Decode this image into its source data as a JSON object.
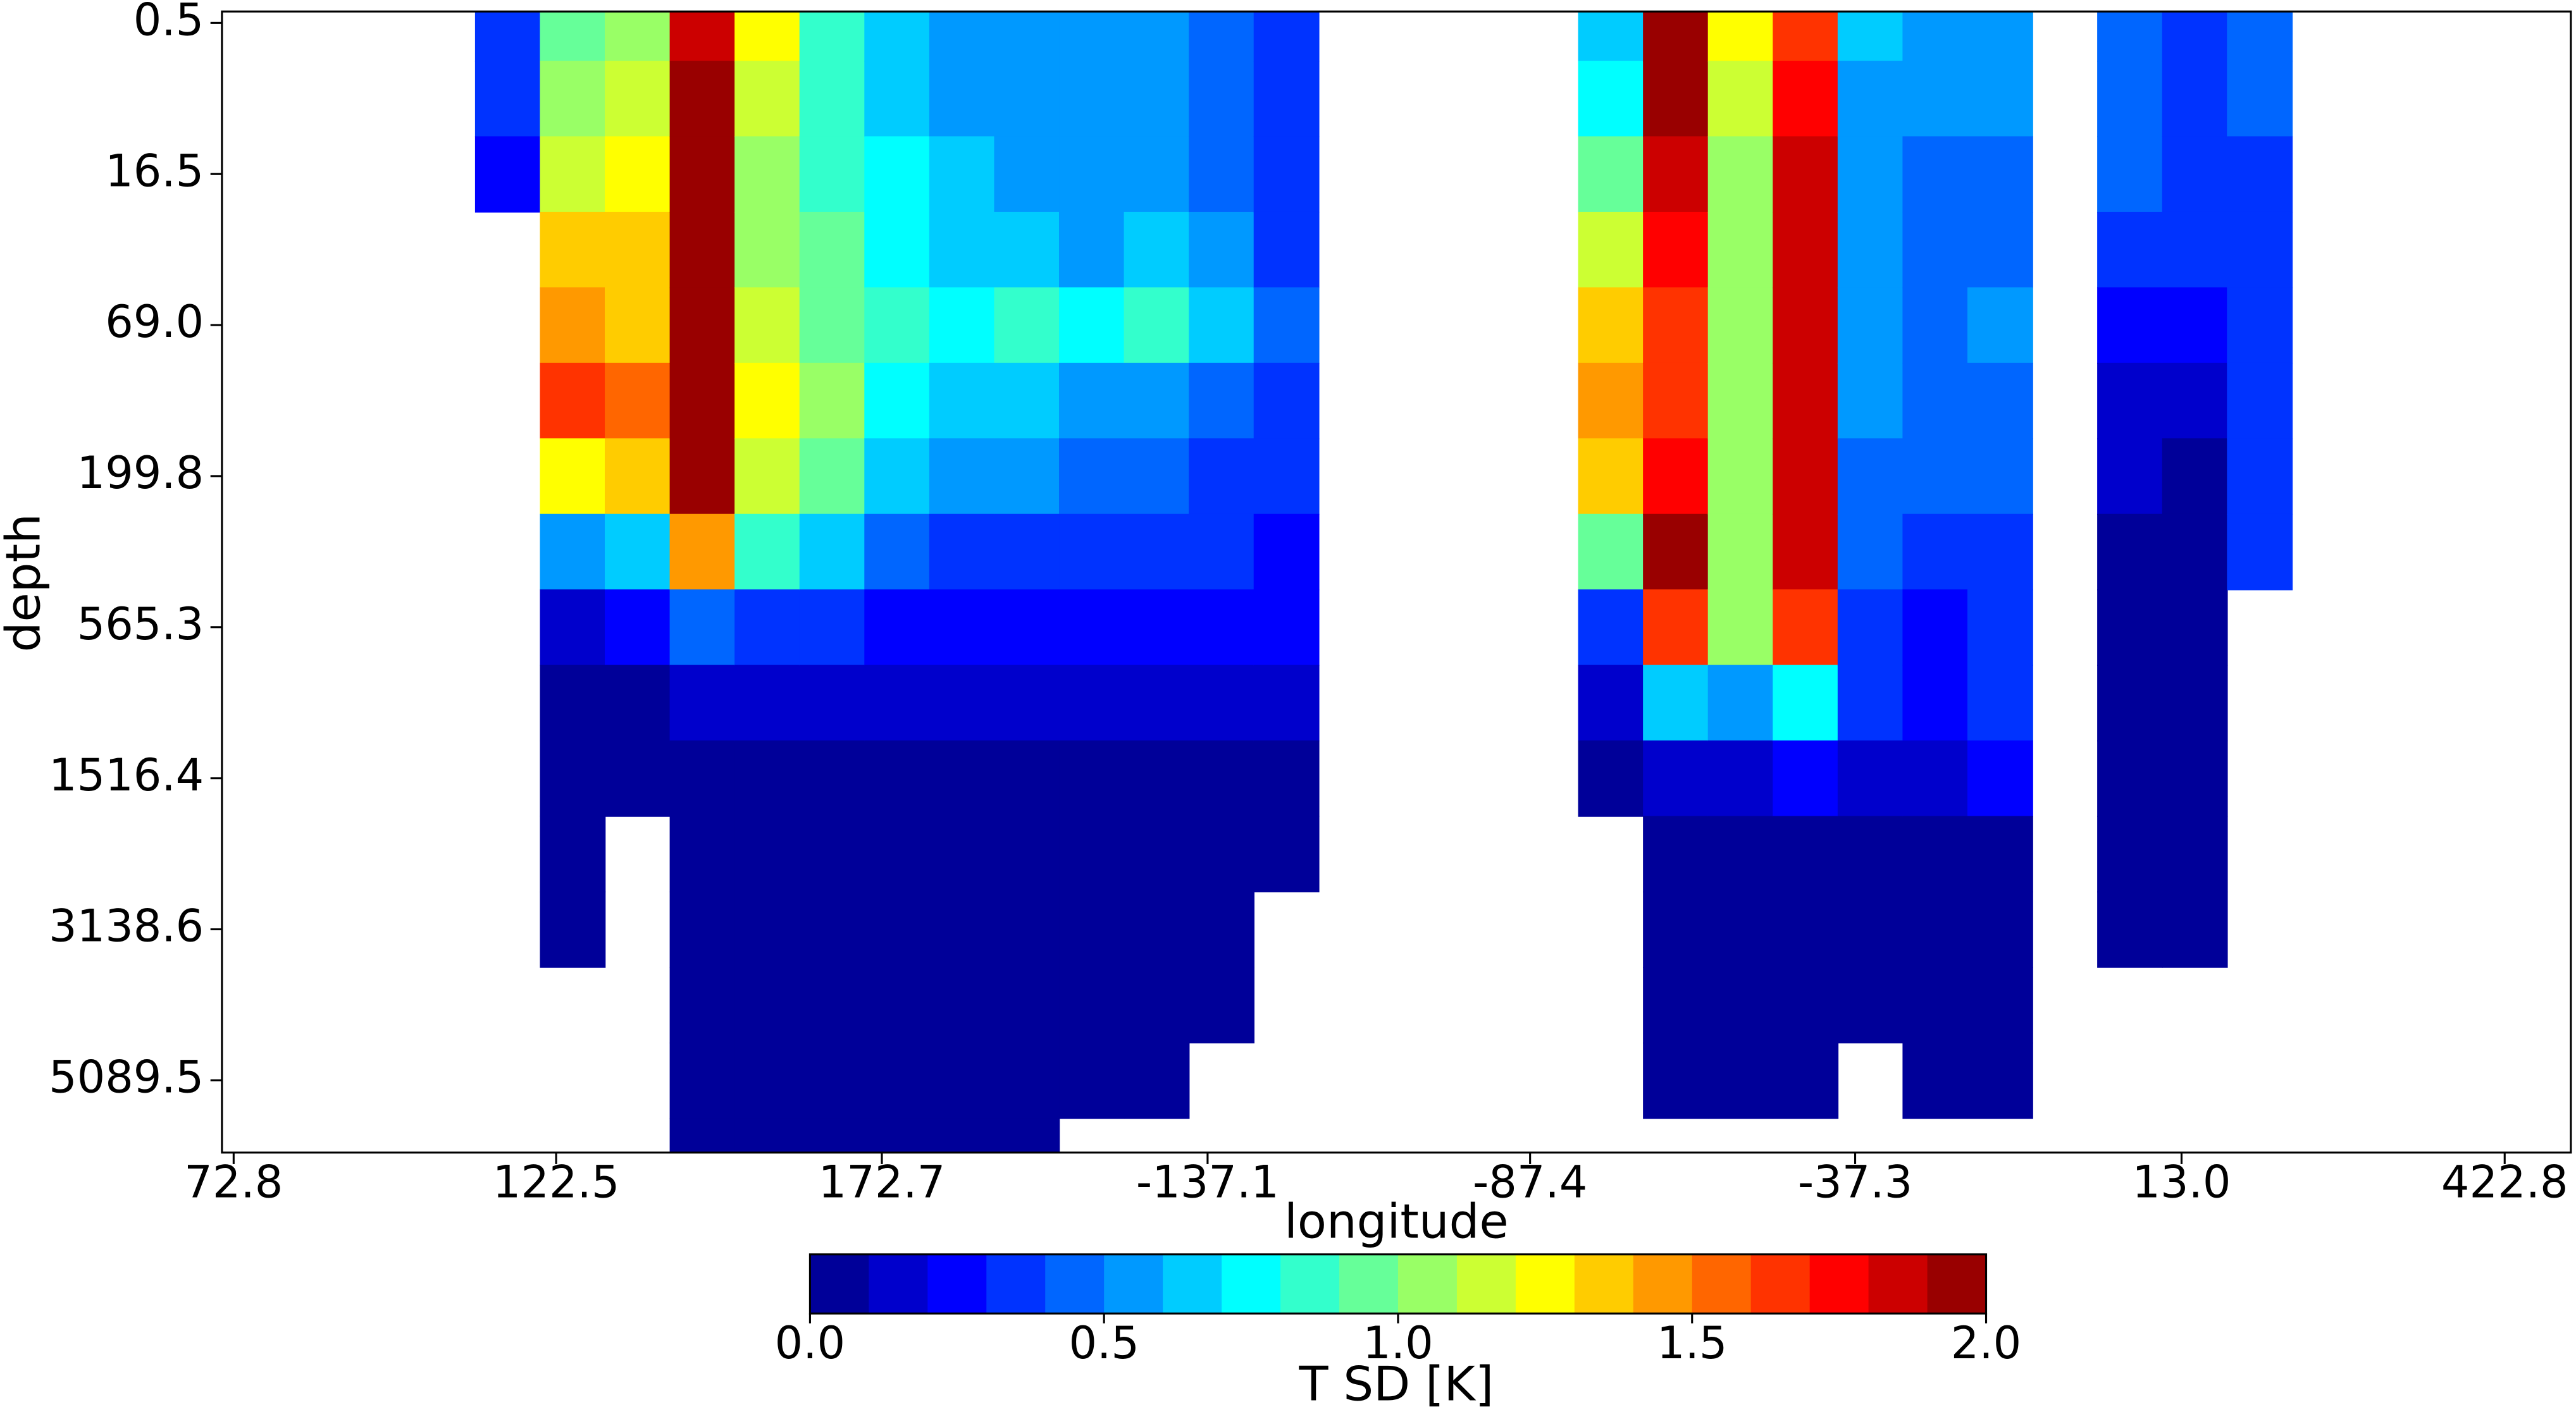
{
  "chart_data": {
    "type": "heatmap",
    "xlabel": "longitude",
    "ylabel": "depth",
    "colorbar_label": "T SD [K]",
    "colormap": "jet",
    "levels": 20,
    "clim": [
      0,
      2
    ],
    "colorbar_ticks": [
      {
        "value": 0,
        "label": "0.0"
      },
      {
        "value": 0.5,
        "label": "0.5"
      },
      {
        "value": 1,
        "label": "1.0"
      },
      {
        "value": 1.5,
        "label": "1.5"
      },
      {
        "value": 2,
        "label": "2.0"
      }
    ],
    "xlim": [
      71.0,
      433.0
    ],
    "xticks": [
      72.8,
      122.5,
      172.7,
      {
        "value": 222.9,
        "label": "-137.1"
      },
      {
        "value": 272.6,
        "label": "-87.4"
      },
      {
        "value": 322.7,
        "label": "-37.3"
      },
      {
        "value": 373.0,
        "label": "13.0"
      },
      422.8
    ],
    "y": [
      "0.5",
      null,
      "16.5",
      null,
      "69.0",
      null,
      "199.8",
      null,
      "565.3",
      null,
      "1516.4",
      null,
      "3138.6",
      null,
      "5089.5",
      null
    ],
    "x": [
      75,
      85,
      95,
      105,
      115,
      125,
      135,
      145,
      155,
      165,
      175,
      185,
      195,
      205,
      215,
      225,
      235,
      245,
      255,
      265,
      275,
      285,
      295,
      305,
      315,
      325,
      335,
      345,
      355,
      365,
      375,
      385,
      395,
      405,
      415,
      425
    ],
    "values": [
      [
        null,
        null,
        null,
        null,
        null,
        null,
        null,
        null,
        null,
        null,
        null,
        null,
        null,
        null,
        null,
        null
      ],
      [
        null,
        null,
        null,
        null,
        null,
        null,
        null,
        null,
        null,
        null,
        null,
        null,
        null,
        null,
        null,
        null
      ],
      [
        null,
        null,
        null,
        null,
        null,
        null,
        null,
        null,
        null,
        null,
        null,
        null,
        null,
        null,
        null,
        null
      ],
      [
        null,
        null,
        null,
        null,
        null,
        null,
        null,
        null,
        null,
        null,
        null,
        null,
        null,
        null,
        null,
        null
      ],
      [
        0.3,
        0.3,
        0.2,
        null,
        null,
        null,
        null,
        null,
        null,
        null,
        null,
        null,
        null,
        null,
        null,
        null
      ],
      [
        0.9,
        1.0,
        1.1,
        1.3,
        1.4,
        1.6,
        1.2,
        0.5,
        0.1,
        0.05,
        0.05,
        0.05,
        0.05,
        null,
        null,
        null
      ],
      [
        1.0,
        1.1,
        1.2,
        1.3,
        1.3,
        1.5,
        1.3,
        0.6,
        0.2,
        0.05,
        0.05,
        null,
        null,
        null,
        null,
        null
      ],
      [
        1.8,
        1.9,
        1.9,
        2.0,
        2.0,
        2.0,
        1.9,
        1.4,
        0.4,
        0.1,
        0.05,
        0.05,
        0.05,
        0.05,
        0.05,
        0.05
      ],
      [
        1.2,
        1.1,
        1.0,
        1.0,
        1.1,
        1.2,
        1.1,
        0.8,
        0.3,
        0.1,
        0.05,
        0.05,
        0.05,
        0.05,
        0.05,
        0.05
      ],
      [
        0.8,
        0.8,
        0.8,
        0.9,
        0.9,
        1.0,
        0.9,
        0.6,
        0.3,
        0.1,
        0.05,
        0.05,
        0.05,
        0.05,
        0.05,
        0.05
      ],
      [
        0.6,
        0.6,
        0.7,
        0.7,
        0.8,
        0.7,
        0.6,
        0.4,
        0.2,
        0.1,
        0.05,
        0.05,
        0.05,
        0.05,
        0.05,
        0.05
      ],
      [
        0.5,
        0.5,
        0.6,
        0.6,
        0.7,
        0.6,
        0.5,
        0.3,
        0.2,
        0.1,
        0.05,
        0.05,
        0.05,
        0.05,
        0.05,
        0.05
      ],
      [
        0.5,
        0.5,
        0.5,
        0.6,
        0.8,
        0.6,
        0.5,
        0.3,
        0.2,
        0.1,
        0.05,
        0.05,
        0.05,
        0.05,
        0.05,
        0.05
      ],
      [
        0.5,
        0.5,
        0.5,
        0.5,
        0.7,
        0.5,
        0.4,
        0.3,
        0.2,
        0.1,
        0.05,
        0.05,
        0.05,
        0.05,
        0.05,
        null
      ],
      [
        0.5,
        0.5,
        0.5,
        0.6,
        0.8,
        0.5,
        0.4,
        0.3,
        0.2,
        0.1,
        0.05,
        0.05,
        0.05,
        0.05,
        0.05,
        null
      ],
      [
        0.4,
        0.4,
        0.4,
        0.5,
        0.6,
        0.4,
        0.3,
        0.3,
        0.2,
        0.1,
        0.05,
        0.05,
        0.05,
        0.05,
        null,
        null
      ],
      [
        0.3,
        0.3,
        0.3,
        0.3,
        0.4,
        0.3,
        0.3,
        0.2,
        0.2,
        0.1,
        0.05,
        0.05,
        null,
        null,
        null,
        null
      ],
      [
        null,
        null,
        null,
        null,
        null,
        null,
        null,
        null,
        null,
        null,
        null,
        null,
        null,
        null,
        null,
        null
      ],
      [
        null,
        null,
        null,
        null,
        null,
        null,
        null,
        null,
        null,
        null,
        null,
        null,
        null,
        null,
        null,
        null
      ],
      [
        null,
        null,
        null,
        null,
        null,
        null,
        null,
        null,
        null,
        null,
        null,
        null,
        null,
        null,
        null,
        null
      ],
      [
        null,
        null,
        null,
        null,
        null,
        null,
        null,
        null,
        null,
        null,
        null,
        null,
        null,
        null,
        null,
        null
      ],
      [
        0.6,
        0.7,
        0.9,
        1.1,
        1.3,
        1.4,
        1.3,
        0.9,
        0.3,
        0.1,
        0.05,
        null,
        null,
        null,
        null,
        null
      ],
      [
        1.9,
        1.9,
        1.8,
        1.7,
        1.6,
        1.6,
        1.7,
        1.9,
        1.6,
        0.6,
        0.1,
        0.05,
        0.05,
        0.05,
        0.05,
        null
      ],
      [
        1.2,
        1.1,
        1.0,
        1.0,
        1.0,
        1.0,
        1.0,
        1.0,
        1.0,
        0.5,
        0.1,
        0.05,
        0.05,
        0.05,
        0.05,
        null
      ],
      [
        1.6,
        1.7,
        1.8,
        1.8,
        1.8,
        1.8,
        1.8,
        1.8,
        1.6,
        0.7,
        0.2,
        0.05,
        0.05,
        0.05,
        0.05,
        null
      ],
      [
        0.6,
        0.5,
        0.5,
        0.5,
        0.5,
        0.5,
        0.4,
        0.4,
        0.3,
        0.3,
        0.1,
        0.05,
        0.05,
        0.05,
        null,
        null
      ],
      [
        0.5,
        0.5,
        0.4,
        0.4,
        0.4,
        0.4,
        0.4,
        0.3,
        0.2,
        0.2,
        0.1,
        0.05,
        0.05,
        0.05,
        0.05,
        null
      ],
      [
        0.5,
        0.5,
        0.4,
        0.4,
        0.5,
        0.4,
        0.4,
        0.3,
        0.3,
        0.3,
        0.2,
        0.05,
        0.05,
        0.05,
        0.05,
        null
      ],
      [
        null,
        null,
        null,
        null,
        null,
        null,
        null,
        null,
        null,
        null,
        null,
        null,
        null,
        null,
        null,
        null
      ],
      [
        0.4,
        0.4,
        0.4,
        0.3,
        0.2,
        0.1,
        0.1,
        0.05,
        0.05,
        0.05,
        0.05,
        0.05,
        0.05,
        null,
        null,
        null
      ],
      [
        0.3,
        0.3,
        0.3,
        0.3,
        0.2,
        0.1,
        0.05,
        0.05,
        0.05,
        0.05,
        0.05,
        0.05,
        0.05,
        null,
        null,
        null
      ],
      [
        0.4,
        0.4,
        0.3,
        0.3,
        0.3,
        0.3,
        0.3,
        0.3,
        null,
        null,
        null,
        null,
        null,
        null,
        null,
        null
      ],
      [
        null,
        null,
        null,
        null,
        null,
        null,
        null,
        null,
        null,
        null,
        null,
        null,
        null,
        null,
        null,
        null
      ],
      [
        null,
        null,
        null,
        null,
        null,
        null,
        null,
        null,
        null,
        null,
        null,
        null,
        null,
        null,
        null,
        null
      ],
      [
        null,
        null,
        null,
        null,
        null,
        null,
        null,
        null,
        null,
        null,
        null,
        null,
        null,
        null,
        null,
        null
      ],
      [
        null,
        null,
        null,
        null,
        null,
        null,
        null,
        null,
        null,
        null,
        null,
        null,
        null,
        null,
        null,
        null
      ]
    ]
  }
}
